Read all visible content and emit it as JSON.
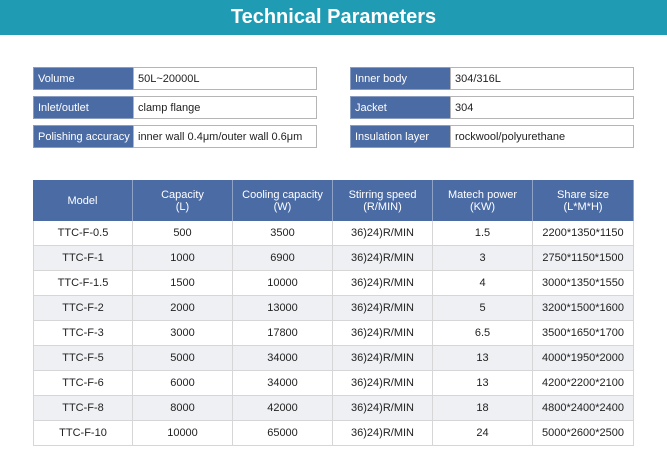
{
  "header": {
    "title": "Technical Parameters"
  },
  "specs": {
    "left": [
      [
        "Volume",
        "50L~20000L"
      ],
      [
        "Inlet/outlet",
        "clamp flange"
      ],
      [
        "Polishing accuracy",
        "inner wall 0.4μm/outer wall 0.6μm"
      ]
    ],
    "right": [
      [
        "Inner body",
        "304/316L"
      ],
      [
        "Jacket",
        "304"
      ],
      [
        "Insulation layer",
        "rockwool/polyurethane"
      ]
    ]
  },
  "table": {
    "header": [
      [
        "Model"
      ],
      [
        "Capacity",
        "(L)"
      ],
      [
        "Cooling capacity",
        "(W)"
      ],
      [
        "Stirring speed",
        "(R/MIN)"
      ],
      [
        "Matech power",
        "(KW)"
      ],
      [
        "Share size",
        "(L*M*H)"
      ]
    ],
    "rows": [
      [
        "TTC-F-0.5",
        "500",
        "3500",
        "36)24)R/MIN",
        "1.5",
        "2200*1350*1150"
      ],
      [
        "TTC-F-1",
        "1000",
        "6900",
        "36)24)R/MIN",
        "3",
        "2750*1150*1500"
      ],
      [
        "TTC-F-1.5",
        "1500",
        "10000",
        "36)24)R/MIN",
        "4",
        "3000*1350*1550"
      ],
      [
        "TTC-F-2",
        "2000",
        "13000",
        "36)24)R/MIN",
        "5",
        "3200*1500*1600"
      ],
      [
        "TTC-F-3",
        "3000",
        "17800",
        "36)24)R/MIN",
        "6.5",
        "3500*1650*1700"
      ],
      [
        "TTC-F-5",
        "5000",
        "34000",
        "36)24)R/MIN",
        "13",
        "4000*1950*2000"
      ],
      [
        "TTC-F-6",
        "6000",
        "34000",
        "36)24)R/MIN",
        "13",
        "4200*2200*2100"
      ],
      [
        "TTC-F-8",
        "8000",
        "42000",
        "36)24)R/MIN",
        "18",
        "4800*2400*2400"
      ],
      [
        "TTC-F-10",
        "10000",
        "65000",
        "36)24)R/MIN",
        "24",
        "5000*2600*2500"
      ]
    ]
  }
}
